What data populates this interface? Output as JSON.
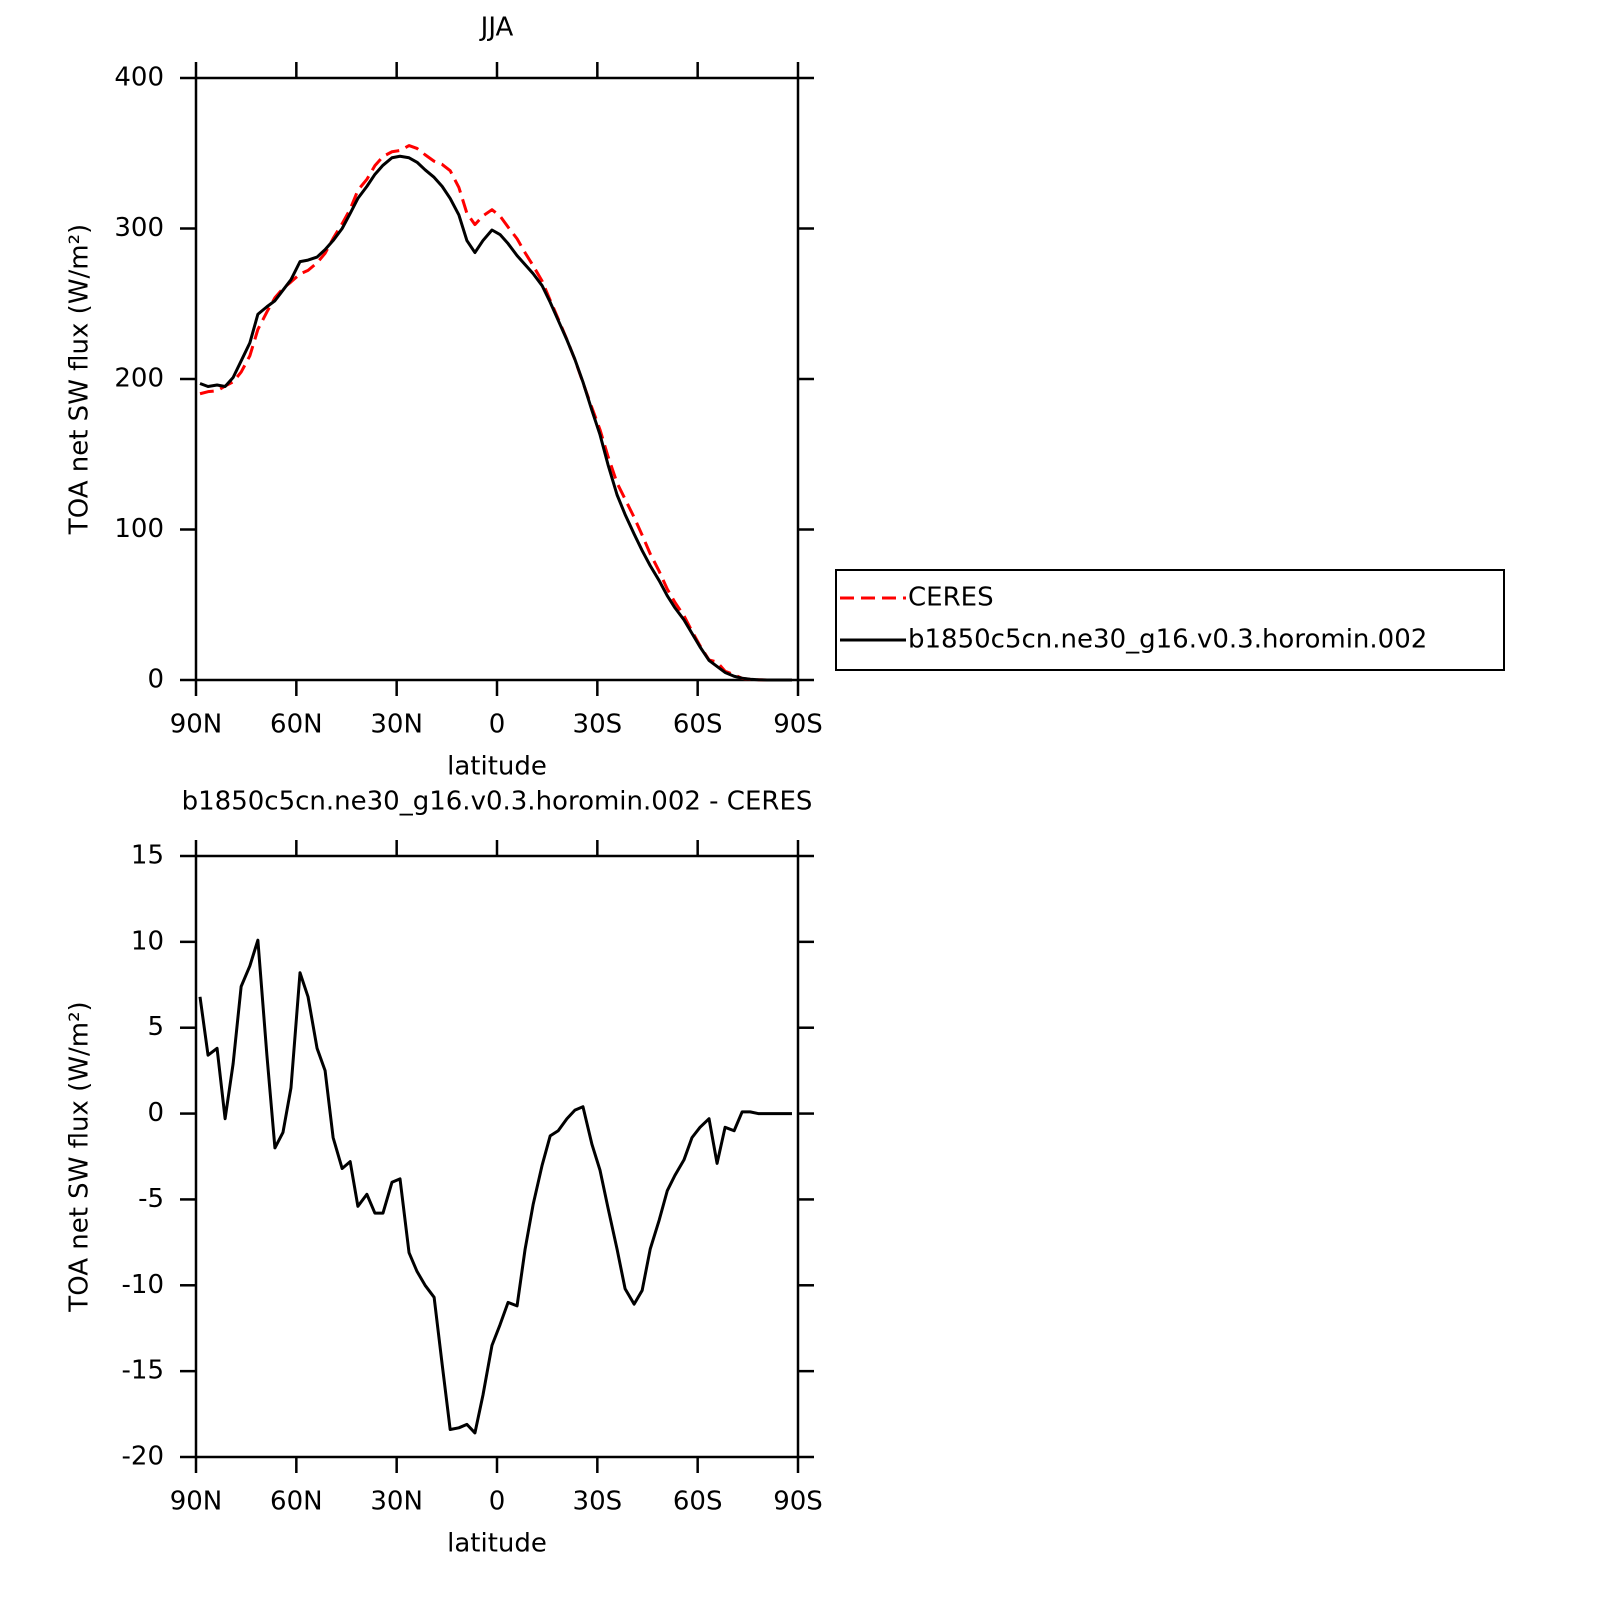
{
  "chart_data": [
    {
      "type": "line",
      "title": "JJA",
      "xlabel": "latitude",
      "ylabel": "TOA net SW flux (W/m²)",
      "x": [
        88.8,
        86.4,
        83.7,
        81.3,
        78.9,
        76.5,
        73.9,
        71.5,
        68.8,
        66.4,
        64.0,
        61.6,
        58.9,
        56.5,
        53.8,
        51.4,
        49.0,
        46.3,
        43.9,
        41.6,
        38.9,
        36.5,
        34.1,
        31.4,
        29.0,
        26.3,
        23.9,
        21.5,
        18.8,
        16.4,
        14.0,
        11.4,
        9.0,
        6.6,
        4.2,
        1.5,
        -0.9,
        -3.3,
        -6.0,
        -8.4,
        -10.8,
        -13.5,
        -15.9,
        -18.3,
        -20.9,
        -23.3,
        -25.7,
        -28.4,
        -30.8,
        -33.2,
        -35.9,
        -38.3,
        -41.0,
        -43.4,
        -45.8,
        -48.5,
        -50.9,
        -53.2,
        -55.9,
        -58.3,
        -60.7,
        -63.4,
        -65.8,
        -68.2,
        -70.9,
        -73.3,
        -75.7,
        -78.1,
        -80.8,
        -83.2,
        -85.6,
        -88.2
      ],
      "series": [
        {
          "name": "CERES",
          "color": "#ff0000",
          "linestyle": "dashed",
          "values": [
            190.2,
            191.6,
            192.2,
            195.3,
            198.1,
            204.6,
            215.4,
            232.9,
            244.6,
            254,
            260.1,
            264.5,
            269.8,
            272.2,
            277.2,
            283.5,
            293.4,
            303.2,
            312.8,
            325.4,
            332.7,
            341.8,
            347.8,
            351,
            351.8,
            355.1,
            353.2,
            349,
            344.7,
            342.6,
            338.4,
            327.3,
            310.1,
            302.6,
            308.4,
            312.5,
            308.3,
            301,
            293.2,
            283.9,
            275.3,
            265,
            252.3,
            240,
            226.3,
            212.8,
            197.6,
            180.8,
            166.3,
            148.5,
            130.9,
            120.2,
            108.1,
            96.3,
            83.9,
            72.2,
            60.5,
            51.6,
            42.7,
            32.4,
            22.8,
            13.3,
            11.9,
            5.8,
            3.5,
            1.1,
            0.4,
            0.2,
            0,
            0,
            0,
            0
          ]
        },
        {
          "name": "b1850c5cn.ne30_g16.v0.3.horomin.002",
          "color": "#000000",
          "linestyle": "solid",
          "values": [
            197,
            195,
            196,
            195,
            201,
            212,
            224,
            243,
            248,
            252,
            259,
            266,
            278,
            279,
            281,
            286,
            292,
            300,
            310,
            320,
            328,
            336,
            342,
            347,
            348,
            347,
            344,
            339,
            334,
            328,
            320,
            309,
            292,
            284,
            292,
            299,
            296,
            290,
            282,
            276,
            270,
            262,
            251,
            239,
            226,
            213,
            198,
            179,
            163,
            143,
            123,
            110,
            97,
            86,
            76,
            66,
            56,
            48,
            40,
            31,
            22,
            13,
            9,
            5,
            2.5,
            1.2,
            0.5,
            0.2,
            0,
            0,
            0,
            0
          ]
        }
      ],
      "xlim": [
        90,
        -90
      ],
      "xticks": [
        {
          "value": 90,
          "label": "90N"
        },
        {
          "value": 60,
          "label": "60N"
        },
        {
          "value": 30,
          "label": "30N"
        },
        0,
        {
          "value": -30,
          "label": "30S"
        },
        {
          "value": -60,
          "label": "60S"
        },
        {
          "value": -90,
          "label": "90S"
        }
      ],
      "ylim": [
        0,
        400
      ],
      "yticks": [
        0,
        100,
        200,
        300,
        400
      ],
      "legend": "right"
    },
    {
      "type": "line",
      "title": "b1850c5cn.ne30_g16.v0.3.horomin.002 - CERES",
      "xlabel": "latitude",
      "ylabel": "TOA net SW flux (W/m²)",
      "x": [
        88.8,
        86.4,
        83.7,
        81.3,
        78.9,
        76.5,
        73.9,
        71.5,
        68.8,
        66.4,
        64.0,
        61.6,
        58.9,
        56.5,
        53.8,
        51.4,
        49.0,
        46.3,
        43.9,
        41.6,
        38.9,
        36.5,
        34.1,
        31.4,
        29.0,
        26.3,
        23.9,
        21.5,
        18.8,
        16.4,
        14.0,
        11.4,
        9.0,
        6.6,
        4.2,
        1.5,
        -0.9,
        -3.3,
        -6.0,
        -8.4,
        -10.8,
        -13.5,
        -15.9,
        -18.3,
        -20.9,
        -23.3,
        -25.7,
        -28.4,
        -30.8,
        -33.2,
        -35.9,
        -38.3,
        -41.0,
        -43.4,
        -45.8,
        -48.5,
        -50.9,
        -53.2,
        -55.9,
        -58.3,
        -60.7,
        -63.4,
        -65.8,
        -68.2,
        -70.9,
        -73.3,
        -75.7,
        -78.1,
        -80.8,
        -83.2,
        -85.6,
        -88.2
      ],
      "series": [
        {
          "color": "#000000",
          "linestyle": "solid",
          "values": [
            6.8,
            3.4,
            3.8,
            -0.3,
            2.9,
            7.4,
            8.6,
            10.1,
            3.4,
            -2.0,
            -1.1,
            1.5,
            8.2,
            6.8,
            3.8,
            2.5,
            -1.4,
            -3.2,
            -2.8,
            -5.4,
            -4.7,
            -5.8,
            -5.8,
            -4.0,
            -3.8,
            -8.1,
            -9.2,
            -10.0,
            -10.7,
            -14.6,
            -18.4,
            -18.3,
            -18.1,
            -18.6,
            -16.4,
            -13.5,
            -12.3,
            -11.0,
            -11.2,
            -7.9,
            -5.3,
            -3.0,
            -1.3,
            -1.0,
            -0.3,
            0.2,
            0.4,
            -1.8,
            -3.3,
            -5.5,
            -7.9,
            -10.2,
            -11.1,
            -10.3,
            -7.9,
            -6.2,
            -4.5,
            -3.6,
            -2.7,
            -1.4,
            -0.8,
            -0.3,
            -2.9,
            -0.8,
            -1.0,
            0.1,
            0.1,
            0,
            0,
            0,
            0,
            0
          ]
        }
      ],
      "xlim": [
        90,
        -90
      ],
      "xticks": [
        {
          "value": 90,
          "label": "90N"
        },
        {
          "value": 60,
          "label": "60N"
        },
        {
          "value": 30,
          "label": "30N"
        },
        0,
        {
          "value": -30,
          "label": "30S"
        },
        {
          "value": -60,
          "label": "60S"
        },
        {
          "value": -90,
          "label": "90S"
        }
      ],
      "ylim": [
        -20,
        15
      ],
      "yticks": [
        -20,
        -15,
        -10,
        -5,
        0,
        5,
        10,
        15
      ]
    }
  ]
}
